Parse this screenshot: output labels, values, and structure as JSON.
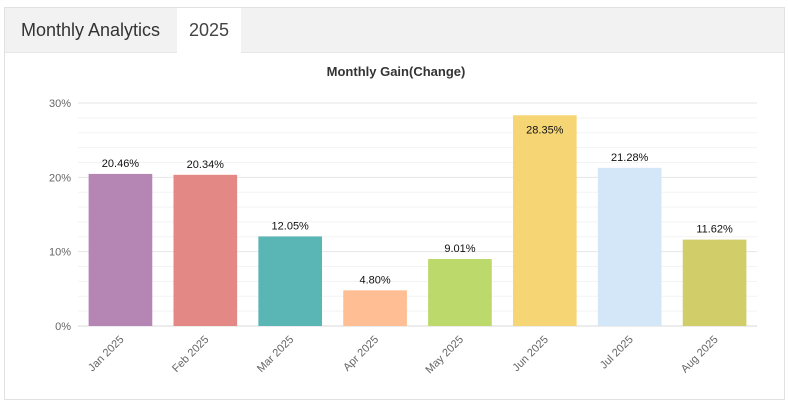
{
  "header": {
    "title": "Monthly Analytics",
    "year_tab": "2025"
  },
  "colors": {
    "bars": [
      "#b586b4",
      "#e48885",
      "#5ab5b5",
      "#ffbe94",
      "#bcd96b",
      "#f6d574",
      "#d3e7f8",
      "#d1cd68"
    ],
    "grid": "#e6e6e6",
    "axis_text": "#666666"
  },
  "chart_data": {
    "type": "bar",
    "title": "Monthly Gain(Change)",
    "categories": [
      "Jan 2025",
      "Feb 2025",
      "Mar 2025",
      "Apr 2025",
      "May 2025",
      "Jun 2025",
      "Jul 2025",
      "Aug 2025"
    ],
    "values": [
      20.46,
      20.34,
      12.05,
      4.8,
      9.01,
      28.35,
      21.28,
      11.62
    ],
    "value_labels": [
      "20.46%",
      "20.34%",
      "12.05%",
      "4.80%",
      "9.01%",
      "28.35%",
      "21.28%",
      "11.62%"
    ],
    "y_ticks": [
      0,
      10,
      20,
      30
    ],
    "y_tick_labels": [
      "0%",
      "10%",
      "20%",
      "30%"
    ],
    "ylim": [
      0,
      30
    ],
    "grid": true,
    "legend": "none"
  }
}
